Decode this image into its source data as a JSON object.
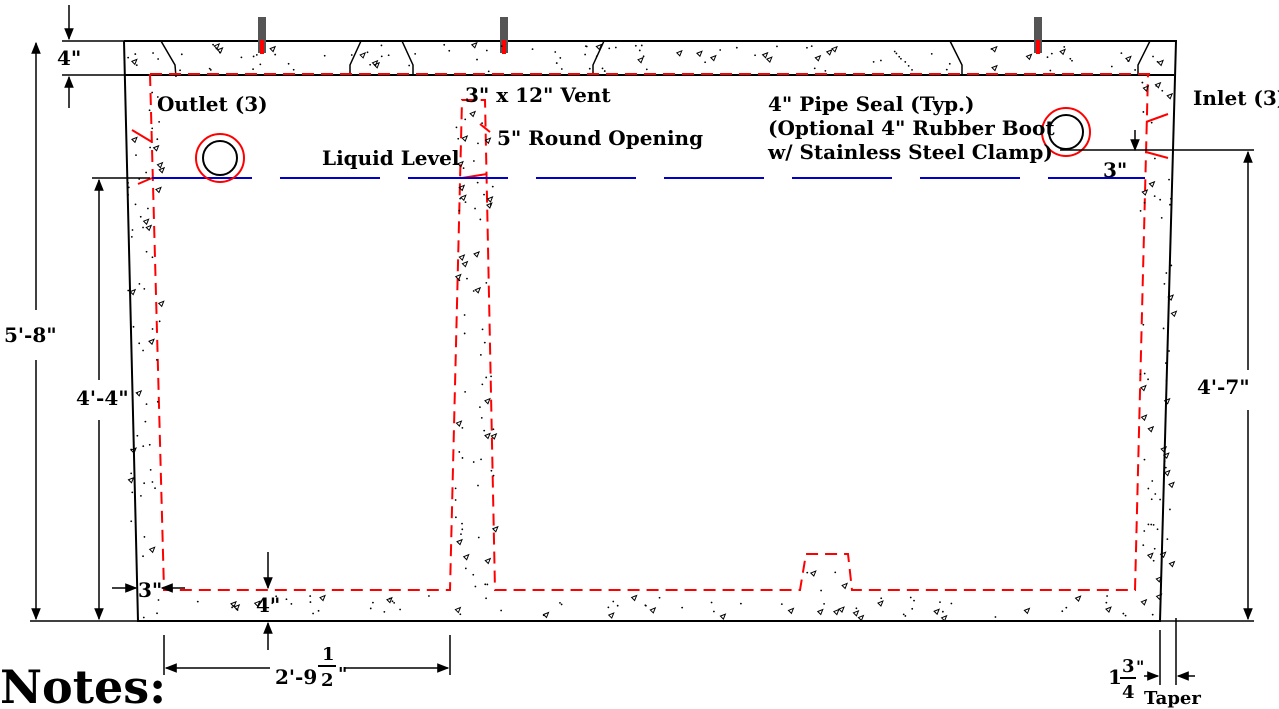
{
  "labels": {
    "outlet": "Outlet (3)",
    "inlet": "Inlet (3)",
    "vent": "3\" x 12\" Vent",
    "round_opening": "5\" Round Opening",
    "liquid_level": "Liquid Level",
    "pipe_seal_1": "4\" Pipe Seal (Typ.)",
    "pipe_seal_2": "(Optional 4\" Rubber Boot",
    "pipe_seal_3": "w/ Stainless Steel Clamp)"
  },
  "dimensions": {
    "top_slab": "4\"",
    "overall_height": "5'-8\"",
    "outlet_liquid_height": "4'-4\"",
    "inlet_height": "4'-7\"",
    "inlet_drop": "3\"",
    "wall_thickness": "3\"",
    "floor_thickness": "4\"",
    "compartment_width_whole": "2'-9",
    "compartment_width_num": "1",
    "compartment_width_den": "2",
    "compartment_width_inch": "\"",
    "taper_whole": "1",
    "taper_num": "3",
    "taper_den": "4",
    "taper_inch": "\"",
    "taper_word": "Taper"
  },
  "notes_title": "Notes:",
  "colors": {
    "outline": "#000000",
    "rebar": "#ff0000",
    "liquid": "#0000cc"
  }
}
